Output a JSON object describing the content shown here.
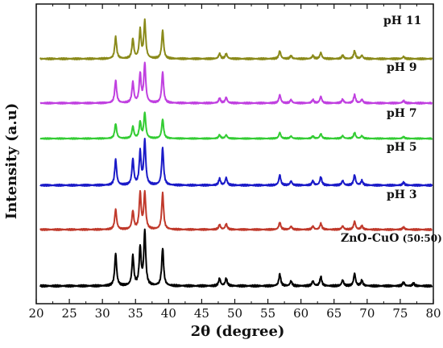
{
  "chart_data": {
    "type": "line",
    "xlabel": "2θ (degree)",
    "ylabel": "Intensity (a.u)",
    "xlim": [
      20,
      80
    ],
    "x_ticks": [
      20,
      25,
      30,
      35,
      40,
      45,
      50,
      55,
      60,
      65,
      70,
      75,
      80
    ],
    "y_ticks_shown": false,
    "grid": false,
    "legend": "none",
    "series": [
      {
        "name": "ZnO-CuO",
        "label_suffix": "(50:50)",
        "color": "#000000",
        "peaks": [
          {
            "x": 32.0,
            "h": 0.6
          },
          {
            "x": 34.6,
            "h": 0.55
          },
          {
            "x": 35.7,
            "h": 0.7
          },
          {
            "x": 36.4,
            "h": 1.0
          },
          {
            "x": 39.1,
            "h": 0.7
          },
          {
            "x": 47.7,
            "h": 0.14
          },
          {
            "x": 48.7,
            "h": 0.14
          },
          {
            "x": 56.8,
            "h": 0.22
          },
          {
            "x": 58.5,
            "h": 0.09
          },
          {
            "x": 61.8,
            "h": 0.09
          },
          {
            "x": 63.0,
            "h": 0.17
          },
          {
            "x": 66.3,
            "h": 0.11
          },
          {
            "x": 68.1,
            "h": 0.23
          },
          {
            "x": 69.2,
            "h": 0.1
          },
          {
            "x": 75.5,
            "h": 0.07
          },
          {
            "x": 77.0,
            "h": 0.05
          }
        ]
      },
      {
        "name": "pH 3",
        "color": "#c0392b",
        "peaks": [
          {
            "x": 32.0,
            "h": 0.5
          },
          {
            "x": 34.6,
            "h": 0.45
          },
          {
            "x": 35.7,
            "h": 0.9
          },
          {
            "x": 36.4,
            "h": 0.9
          },
          {
            "x": 39.1,
            "h": 0.9
          },
          {
            "x": 47.7,
            "h": 0.12
          },
          {
            "x": 48.7,
            "h": 0.14
          },
          {
            "x": 56.8,
            "h": 0.18
          },
          {
            "x": 58.5,
            "h": 0.08
          },
          {
            "x": 61.8,
            "h": 0.08
          },
          {
            "x": 63.0,
            "h": 0.15
          },
          {
            "x": 66.3,
            "h": 0.09
          },
          {
            "x": 68.1,
            "h": 0.2
          },
          {
            "x": 69.2,
            "h": 0.09
          },
          {
            "x": 75.5,
            "h": 0.06
          }
        ]
      },
      {
        "name": "pH 5",
        "color": "#1a1ac8",
        "peaks": [
          {
            "x": 32.0,
            "h": 0.55
          },
          {
            "x": 34.6,
            "h": 0.55
          },
          {
            "x": 35.7,
            "h": 0.7
          },
          {
            "x": 36.4,
            "h": 0.95
          },
          {
            "x": 39.1,
            "h": 0.8
          },
          {
            "x": 47.7,
            "h": 0.14
          },
          {
            "x": 48.7,
            "h": 0.16
          },
          {
            "x": 56.8,
            "h": 0.22
          },
          {
            "x": 58.5,
            "h": 0.09
          },
          {
            "x": 61.8,
            "h": 0.09
          },
          {
            "x": 63.0,
            "h": 0.18
          },
          {
            "x": 66.3,
            "h": 0.1
          },
          {
            "x": 68.1,
            "h": 0.22
          },
          {
            "x": 69.2,
            "h": 0.1
          },
          {
            "x": 75.5,
            "h": 0.06
          }
        ]
      },
      {
        "name": "pH 7",
        "color": "#33cc33",
        "peaks": [
          {
            "x": 32.0,
            "h": 0.5
          },
          {
            "x": 34.6,
            "h": 0.4
          },
          {
            "x": 35.7,
            "h": 0.55
          },
          {
            "x": 36.4,
            "h": 0.85
          },
          {
            "x": 39.1,
            "h": 0.65
          },
          {
            "x": 47.7,
            "h": 0.12
          },
          {
            "x": 48.7,
            "h": 0.12
          },
          {
            "x": 56.8,
            "h": 0.2
          },
          {
            "x": 58.5,
            "h": 0.08
          },
          {
            "x": 61.8,
            "h": 0.08
          },
          {
            "x": 63.0,
            "h": 0.16
          },
          {
            "x": 66.3,
            "h": 0.09
          },
          {
            "x": 68.1,
            "h": 0.2
          },
          {
            "x": 69.2,
            "h": 0.09
          },
          {
            "x": 75.5,
            "h": 0.06
          }
        ]
      },
      {
        "name": "pH 9",
        "color": "#c040e0",
        "peaks": [
          {
            "x": 32.0,
            "h": 0.55
          },
          {
            "x": 34.6,
            "h": 0.5
          },
          {
            "x": 35.7,
            "h": 0.7
          },
          {
            "x": 36.4,
            "h": 0.95
          },
          {
            "x": 39.1,
            "h": 0.75
          },
          {
            "x": 47.7,
            "h": 0.12
          },
          {
            "x": 48.7,
            "h": 0.14
          },
          {
            "x": 56.8,
            "h": 0.2
          },
          {
            "x": 58.5,
            "h": 0.08
          },
          {
            "x": 61.8,
            "h": 0.08
          },
          {
            "x": 63.0,
            "h": 0.16
          },
          {
            "x": 66.3,
            "h": 0.09
          },
          {
            "x": 68.1,
            "h": 0.2
          },
          {
            "x": 69.2,
            "h": 0.09
          },
          {
            "x": 75.5,
            "h": 0.06
          }
        ]
      },
      {
        "name": "pH 11",
        "color": "#8a8a1a",
        "peaks": [
          {
            "x": 32.0,
            "h": 0.5
          },
          {
            "x": 34.6,
            "h": 0.45
          },
          {
            "x": 35.7,
            "h": 0.65
          },
          {
            "x": 36.4,
            "h": 0.85
          },
          {
            "x": 39.1,
            "h": 0.65
          },
          {
            "x": 47.7,
            "h": 0.12
          },
          {
            "x": 48.7,
            "h": 0.12
          },
          {
            "x": 56.8,
            "h": 0.18
          },
          {
            "x": 58.5,
            "h": 0.07
          },
          {
            "x": 61.8,
            "h": 0.07
          },
          {
            "x": 63.0,
            "h": 0.14
          },
          {
            "x": 66.3,
            "h": 0.08
          },
          {
            "x": 68.1,
            "h": 0.18
          },
          {
            "x": 69.2,
            "h": 0.08
          },
          {
            "x": 75.5,
            "h": 0.05
          }
        ]
      }
    ]
  }
}
